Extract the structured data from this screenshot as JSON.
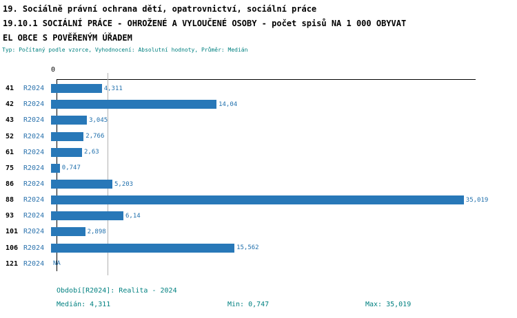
{
  "header": {
    "line1": "19. Sociálně právní ochrana dětí, opatrovnictví, sociální práce",
    "line2": "19.10.1 SOCIÁLNÍ PRÁCE - OHROŽENÉ A VYLOUČENÉ OSOBY - počet spisů NA 1 000 OBYVAT",
    "line3": "EL OBCE S POVĚŘENÝM ÚŘADEM",
    "meta": "Typ: Počítaný podle vzorce, Vyhodnocení: Absolutní hodnoty, Průměr: Medián"
  },
  "chart_data": {
    "type": "bar",
    "orientation": "horizontal",
    "title": "19.10.1 SOCIÁLNÍ PRÁCE - OHROŽENÉ A VYLOUČENÉ OSOBY - počet spisů NA 1 000 OBYVATEL OBCE S POVĚŘENÝM ÚŘADEM",
    "categories": [
      "41",
      "42",
      "43",
      "52",
      "61",
      "75",
      "86",
      "88",
      "93",
      "101",
      "106",
      "121"
    ],
    "series_label": "R2024",
    "values": [
      4.311,
      14.04,
      3.045,
      2.766,
      2.63,
      0.747,
      5.203,
      35.019,
      6.14,
      2.898,
      15.562,
      null
    ],
    "value_labels": [
      "4,311",
      "14,04",
      "3,045",
      "2,766",
      "2,63",
      "0,747",
      "5,203",
      "35,019",
      "6,14",
      "2,898",
      "15,562",
      "NA"
    ],
    "axis_zero_label": "0",
    "xlim": [
      0,
      35.25
    ],
    "median": 4.311,
    "min": 0.747,
    "max": 35.019,
    "grid": "single median gridline",
    "legend_position": "none",
    "bar_color": "#2878b8"
  },
  "footer": {
    "period": "Období[R2024]: Realita - 2024",
    "median_label": "Medián: 4,311",
    "min_label": "Min: 0,747",
    "max_label": "Max: 35,019"
  }
}
